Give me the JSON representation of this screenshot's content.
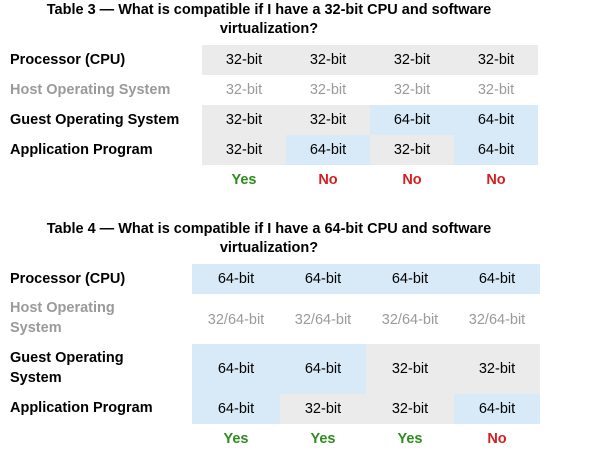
{
  "table3": {
    "caption_line1": "Table 3 — What is compatible if I have a 32-bit CPU and software",
    "caption_line2": "virtualization?",
    "rows": [
      {
        "label": "Processor (CPU)",
        "cells": [
          "32-bit",
          "32-bit",
          "32-bit",
          "32-bit"
        ],
        "bg": [
          "gray",
          "gray",
          "gray",
          "gray"
        ]
      },
      {
        "label": "Host Operating System",
        "cells": [
          "32-bit",
          "32-bit",
          "32-bit",
          "32-bit"
        ],
        "bg": [
          "white",
          "white",
          "white",
          "white"
        ]
      },
      {
        "label": "Guest Operating System",
        "cells": [
          "32-bit",
          "32-bit",
          "64-bit",
          "64-bit"
        ],
        "bg": [
          "gray",
          "gray",
          "blue",
          "blue"
        ]
      },
      {
        "label": "Application Program",
        "cells": [
          "32-bit",
          "64-bit",
          "32-bit",
          "64-bit"
        ],
        "bg": [
          "gray",
          "blue",
          "gray",
          "blue"
        ]
      }
    ],
    "results": [
      "Yes",
      "No",
      "No",
      "No"
    ]
  },
  "table4": {
    "caption_line1": "Table 4 — What is compatible if I have a 64-bit CPU and software",
    "caption_line2": "virtualization?",
    "rows": [
      {
        "label": "Processor (CPU)",
        "cells": [
          "64-bit",
          "64-bit",
          "64-bit",
          "64-bit"
        ],
        "bg": [
          "blue",
          "blue",
          "blue",
          "blue"
        ]
      },
      {
        "label_line1": "Host Operating",
        "label_line2": "System",
        "cells": [
          "32/64-bit",
          "32/64-bit",
          "32/64-bit",
          "32/64-bit"
        ],
        "bg": [
          "white",
          "white",
          "white",
          "white"
        ]
      },
      {
        "label_line1": "Guest Operating",
        "label_line2": "System",
        "cells": [
          "64-bit",
          "64-bit",
          "32-bit",
          "32-bit"
        ],
        "bg": [
          "blue",
          "blue",
          "gray",
          "gray"
        ]
      },
      {
        "label": "Application Program",
        "cells": [
          "64-bit",
          "32-bit",
          "32-bit",
          "64-bit"
        ],
        "bg": [
          "blue",
          "gray",
          "gray",
          "blue"
        ]
      }
    ],
    "results": [
      "Yes",
      "Yes",
      "Yes",
      "No"
    ]
  },
  "colors": {
    "gray": "#ebebeb",
    "blue": "#d8eaf8",
    "yes": "#2e8b1e",
    "no": "#d42020",
    "muted_text": "#9a9a9a"
  }
}
